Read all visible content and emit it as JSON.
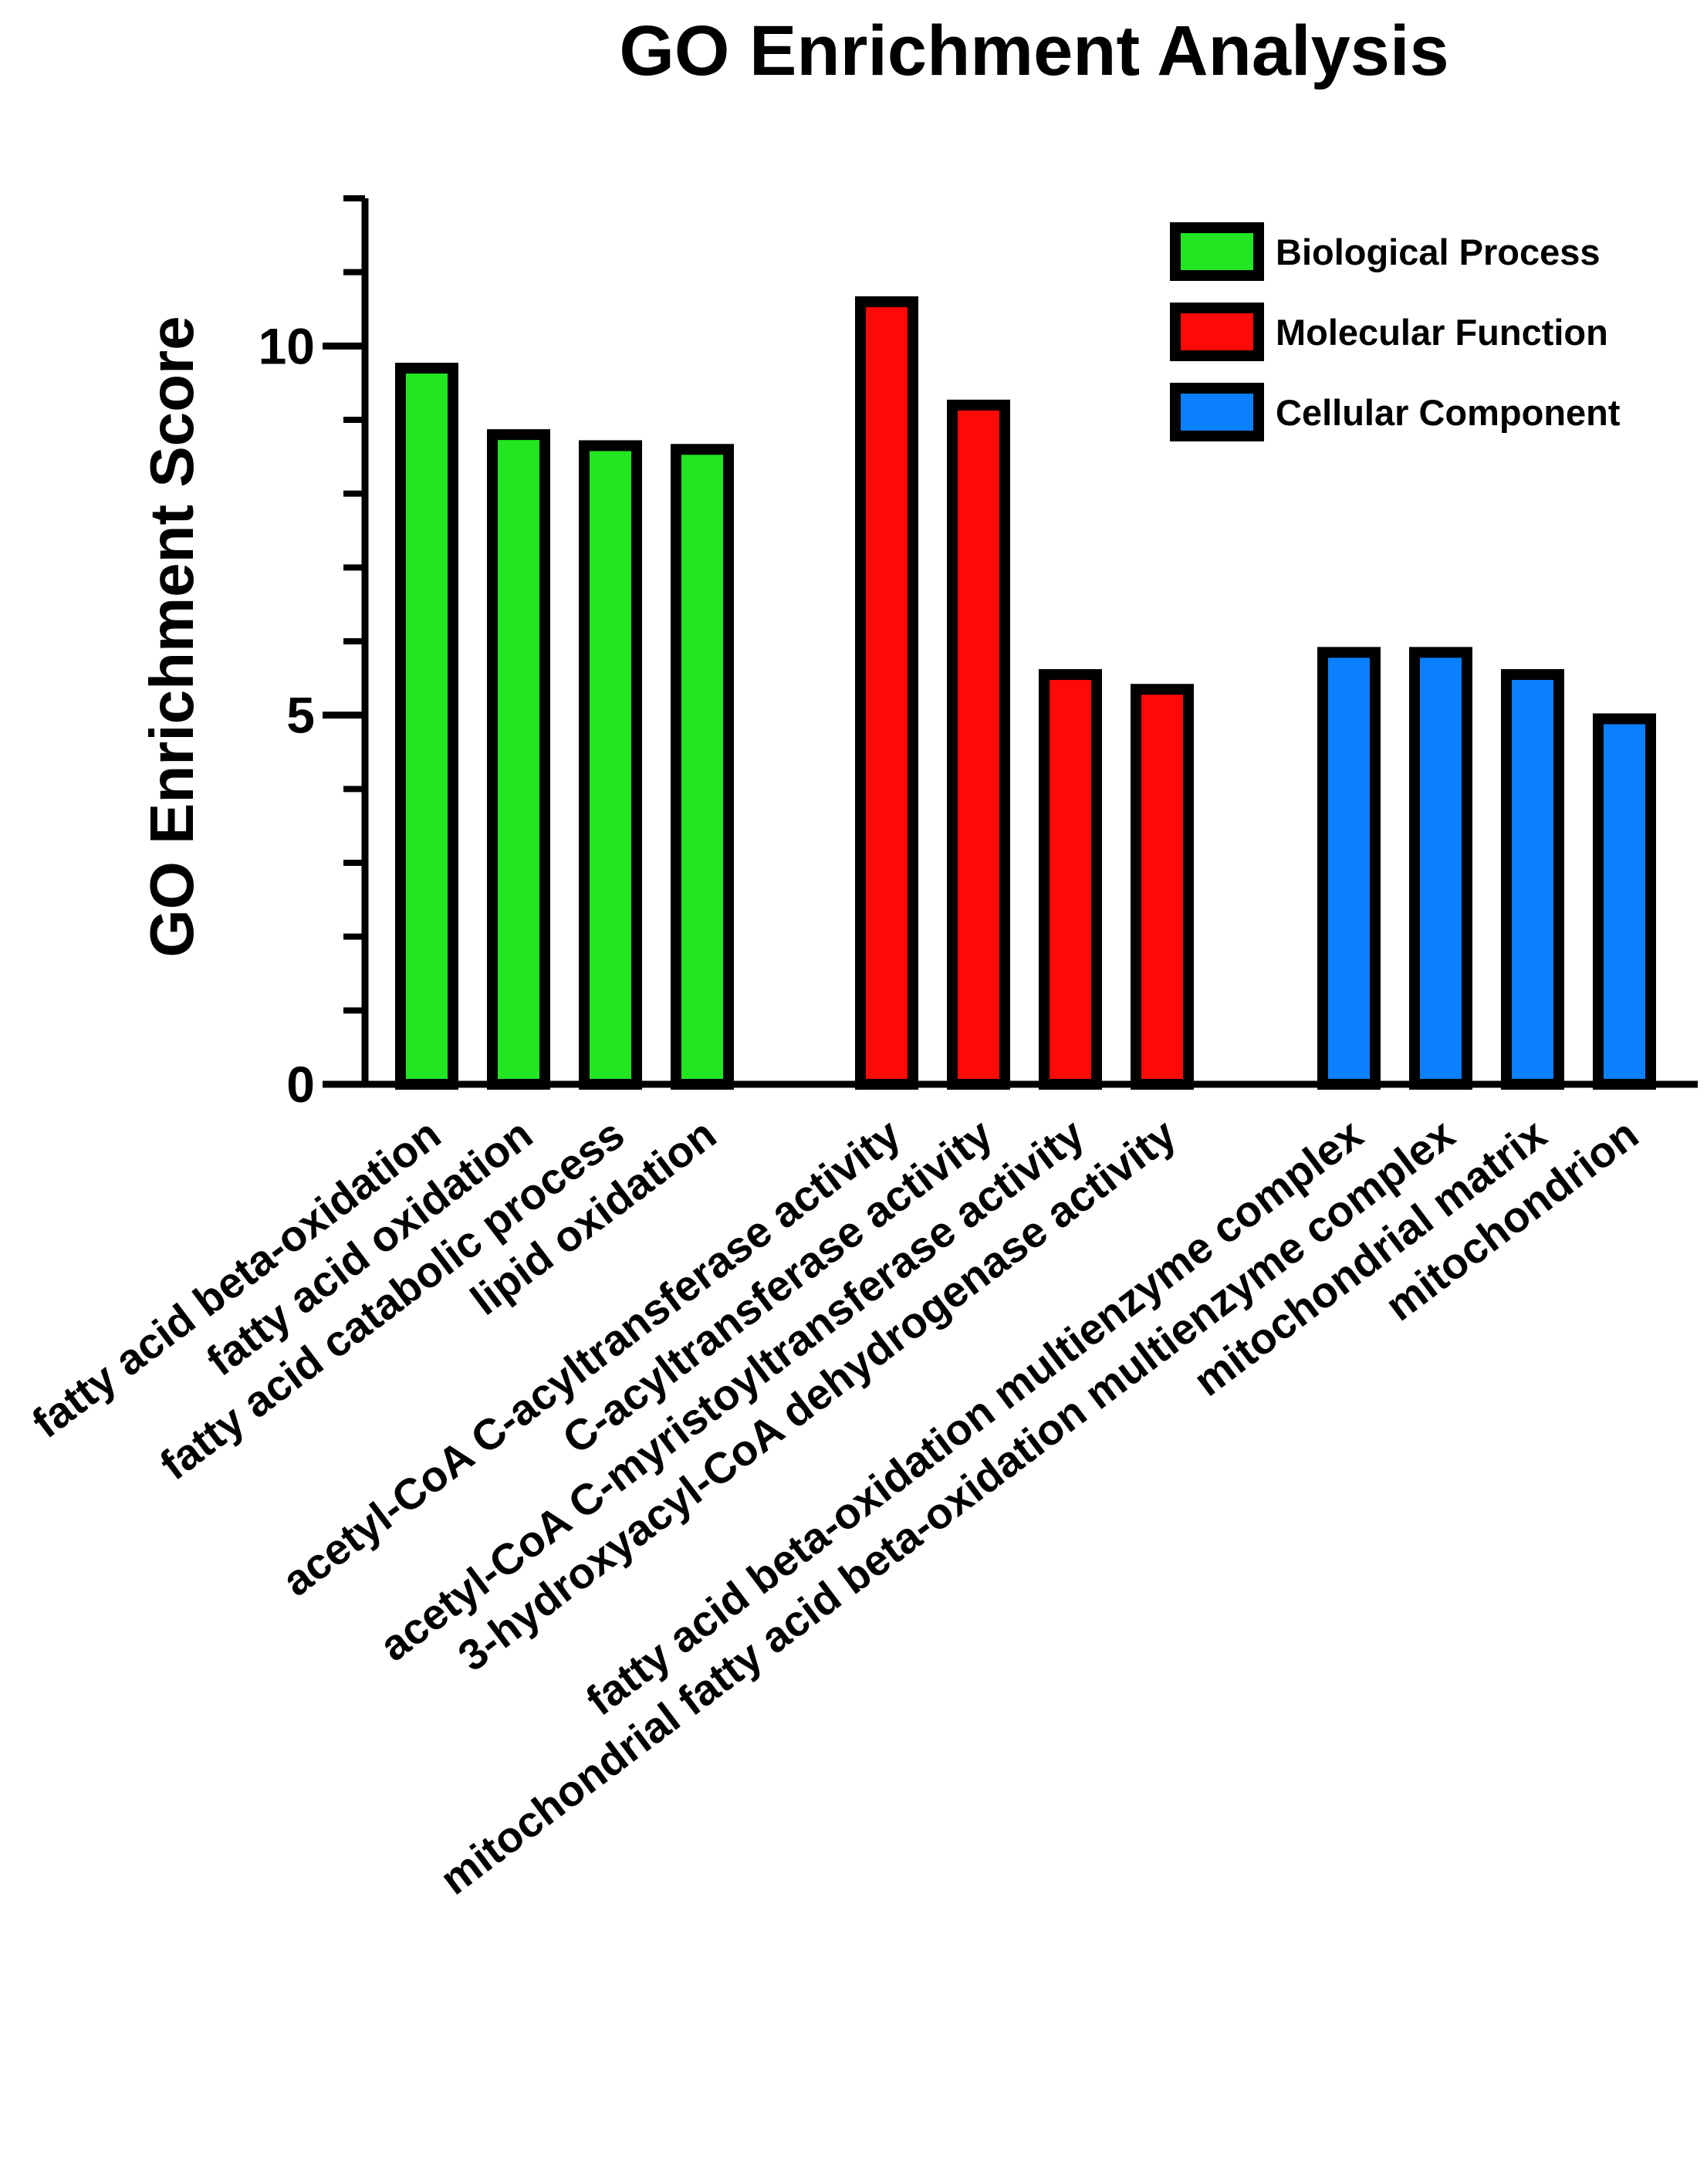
{
  "chart_data": {
    "type": "bar",
    "title": "GO Enrichment Analysis",
    "xlabel": "",
    "ylabel": "GO Enrichment Score",
    "ylim": [
      0,
      12
    ],
    "yticks_major": [
      0,
      5,
      10
    ],
    "yticks_labels": [
      "0",
      "5",
      "10"
    ],
    "yticks_minor": [
      1,
      2,
      3,
      4,
      6,
      7,
      8,
      9,
      11,
      12
    ],
    "grid": false,
    "legend_position": "top-right",
    "series": [
      {
        "name": "Biological Process",
        "color": "#22e622",
        "categories": [
          "fatty acid beta-oxidation",
          "fatty acid oxidation",
          "fatty acid catabolic process",
          "lipid oxidation"
        ],
        "values": [
          9.7,
          8.8,
          8.65,
          8.6
        ]
      },
      {
        "name": "Molecular Function",
        "color": "#ff0808",
        "categories": [
          "acetyl-CoA C-acyltransferase activity",
          "C-acyltransferase activity",
          "acetyl-CoA C-myristoyltransferase activity",
          "3-hydroxyacyl-CoA dehydrogenase activity"
        ],
        "values": [
          10.6,
          9.2,
          5.55,
          5.35
        ]
      },
      {
        "name": "Cellular Component",
        "color": "#0a80ff",
        "categories": [
          "fatty acid beta-oxidation multienzyme complex",
          "mitochondrial fatty acid beta-oxidation multienzyme complex",
          "mitochondrial matrix",
          "mitochondrion"
        ],
        "values": [
          5.85,
          5.85,
          5.55,
          4.95
        ]
      }
    ]
  }
}
